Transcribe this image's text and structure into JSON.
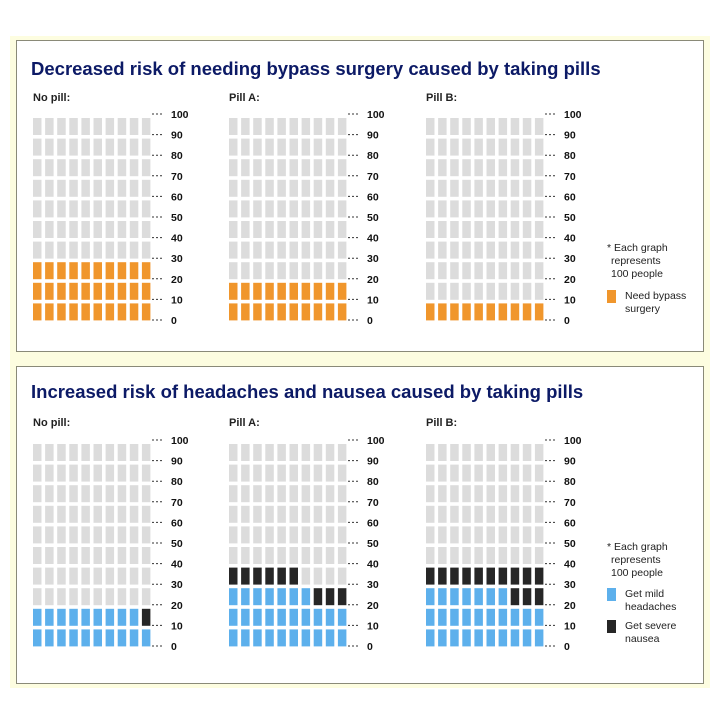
{
  "chart_data": [
    {
      "type": "icon-array",
      "title": "Decreased risk of needing bypass surgery caused by taking pills",
      "y_ticks": [
        "0",
        "10",
        "20",
        "30",
        "40",
        "50",
        "60",
        "70",
        "80",
        "90",
        "100"
      ],
      "groups": [
        {
          "label": "No pill:",
          "series_counts": [
            30
          ]
        },
        {
          "label": "Pill A:",
          "series_counts": [
            20
          ]
        },
        {
          "label": "Pill B:",
          "series_counts": [
            10
          ]
        }
      ],
      "legend": {
        "note": [
          "* Each graph",
          "represents",
          "100 people"
        ],
        "entries": [
          {
            "lines": [
              "Need bypass",
              "surgery"
            ],
            "color": "#f0962c"
          }
        ]
      }
    },
    {
      "type": "icon-array",
      "title": "Increased risk of headaches and nausea caused by taking pills",
      "y_ticks": [
        "0",
        "10",
        "20",
        "30",
        "40",
        "50",
        "60",
        "70",
        "80",
        "90",
        "100"
      ],
      "groups": [
        {
          "label": "No pill:",
          "series_counts": [
            19,
            1
          ]
        },
        {
          "label": "Pill A:",
          "series_counts": [
            27,
            9
          ]
        },
        {
          "label": "Pill B:",
          "series_counts": [
            27,
            13
          ]
        }
      ],
      "legend": {
        "note": [
          "* Each graph",
          "represents",
          "100 people"
        ],
        "entries": [
          {
            "lines": [
              "Get mild",
              "headaches"
            ],
            "color": "#5db0ec"
          },
          {
            "lines": [
              "Get severe",
              "nausea"
            ],
            "color": "#262626"
          }
        ]
      }
    }
  ],
  "colors": {
    "empty_cell": "#dcdcdc",
    "title": "#0c1a66"
  }
}
